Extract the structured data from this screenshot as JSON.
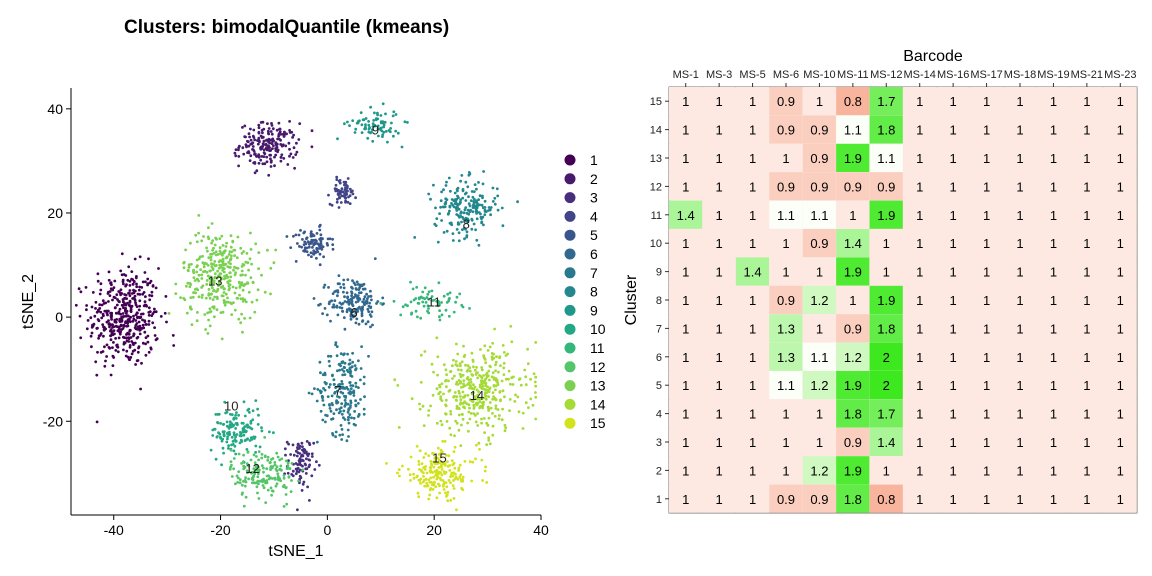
{
  "title": "Clusters: bimodalQuantile (kmeans)",
  "colors": {
    "viridis": [
      "#440154",
      "#481A6C",
      "#472F7D",
      "#414487",
      "#39568C",
      "#31688E",
      "#2A788E",
      "#23888E",
      "#1F988B",
      "#22A884",
      "#35B779",
      "#54C568",
      "#7AD151",
      "#A5DB36",
      "#D2E21B",
      "#FDE725"
    ]
  },
  "chart_data": [
    {
      "type": "scatter",
      "xlabel": "tSNE_1",
      "ylabel": "tSNE_2",
      "xlim": [
        -48,
        40
      ],
      "ylim": [
        -38,
        44
      ],
      "xticks": [
        -40,
        -20,
        0,
        20,
        40
      ],
      "yticks": [
        -20,
        0,
        20,
        40
      ],
      "legend_placement": "right",
      "legend": [
        "1",
        "2",
        "3",
        "4",
        "5",
        "6",
        "7",
        "8",
        "9",
        "10",
        "11",
        "12",
        "13",
        "14",
        "15"
      ],
      "clusters": [
        {
          "name": "1",
          "center": [
            -38,
            0
          ],
          "sd": [
            5.5,
            8
          ],
          "n": 420
        },
        {
          "name": "2",
          "center": [
            -11,
            33
          ],
          "sd": [
            4.5,
            3.5
          ],
          "n": 200
        },
        {
          "name": "3",
          "center": [
            -5,
            -28
          ],
          "sd": [
            2,
            4
          ],
          "n": 90
        },
        {
          "name": "4",
          "center": [
            3,
            24
          ],
          "sd": [
            2,
            2
          ],
          "n": 70
        },
        {
          "name": "5",
          "center": [
            -3,
            14
          ],
          "sd": [
            3,
            2.5
          ],
          "n": 90
        },
        {
          "name": "6",
          "center": [
            5,
            3
          ],
          "sd": [
            4,
            4
          ],
          "n": 170
        },
        {
          "name": "7",
          "center": [
            3,
            -14
          ],
          "sd": [
            4,
            7
          ],
          "n": 200
        },
        {
          "name": "8",
          "center": [
            26,
            21
          ],
          "sd": [
            5,
            4.5
          ],
          "n": 200
        },
        {
          "name": "9",
          "center": [
            9,
            37
          ],
          "sd": [
            4,
            2.5
          ],
          "n": 80
        },
        {
          "name": "10",
          "center": [
            -17,
            -22
          ],
          "sd": [
            4,
            4
          ],
          "n": 140
        },
        {
          "name": "11",
          "center": [
            19,
            3
          ],
          "sd": [
            5,
            2.5
          ],
          "n": 70
        },
        {
          "name": "12",
          "center": [
            -12,
            -30
          ],
          "sd": [
            5,
            4
          ],
          "n": 170
        },
        {
          "name": "13",
          "center": [
            -20,
            8
          ],
          "sd": [
            6,
            7
          ],
          "n": 340
        },
        {
          "name": "14",
          "center": [
            28,
            -14
          ],
          "sd": [
            8,
            7
          ],
          "n": 380
        },
        {
          "name": "15",
          "center": [
            21,
            -30
          ],
          "sd": [
            6,
            4
          ],
          "n": 190
        }
      ],
      "cluster_labels": [
        {
          "text": "9",
          "x": 9,
          "y": 36
        },
        {
          "text": "8",
          "x": 26,
          "y": 18
        },
        {
          "text": "13",
          "x": -21,
          "y": 7
        },
        {
          "text": "6",
          "x": 5,
          "y": 1
        },
        {
          "text": "11",
          "x": 20,
          "y": 3
        },
        {
          "text": "14",
          "x": 28,
          "y": -15
        },
        {
          "text": "7",
          "x": 2,
          "y": -14
        },
        {
          "text": "10",
          "x": -18,
          "y": -17
        },
        {
          "text": "12",
          "x": -14,
          "y": -29
        },
        {
          "text": "15",
          "x": 21,
          "y": -27
        }
      ]
    },
    {
      "type": "heatmap",
      "xlabel": "Barcode",
      "ylabel": "Cluster",
      "x": [
        "MS-1",
        "MS-3",
        "MS-5",
        "MS-6",
        "MS-10",
        "MS-11",
        "MS-12",
        "MS-14",
        "MS-16",
        "MS-17",
        "MS-18",
        "MS-19",
        "MS-21",
        "MS-23"
      ],
      "y": [
        "15",
        "14",
        "13",
        "12",
        "11",
        "10",
        "9",
        "8",
        "7",
        "6",
        "5",
        "4",
        "3",
        "2",
        "1"
      ],
      "values": [
        [
          1,
          1,
          1,
          0.9,
          1,
          0.8,
          1.7,
          1,
          1,
          1,
          1,
          1,
          1,
          1
        ],
        [
          1,
          1,
          1,
          0.9,
          0.9,
          1.1,
          1.8,
          1,
          1,
          1,
          1,
          1,
          1,
          1
        ],
        [
          1,
          1,
          1,
          1,
          0.9,
          1.9,
          1.1,
          1,
          1,
          1,
          1,
          1,
          1,
          1
        ],
        [
          1,
          1,
          1,
          0.9,
          0.9,
          0.9,
          0.9,
          1,
          1,
          1,
          1,
          1,
          1,
          1
        ],
        [
          1.4,
          1,
          1,
          1.1,
          1.1,
          1,
          1.9,
          1,
          1,
          1,
          1,
          1,
          1,
          1
        ],
        [
          1,
          1,
          1,
          1,
          0.9,
          1.4,
          1,
          1,
          1,
          1,
          1,
          1,
          1,
          1
        ],
        [
          1,
          1,
          1.4,
          1,
          1,
          1.9,
          1,
          1,
          1,
          1,
          1,
          1,
          1,
          1
        ],
        [
          1,
          1,
          1,
          0.9,
          1.2,
          1,
          1.9,
          1,
          1,
          1,
          1,
          1,
          1,
          1
        ],
        [
          1,
          1,
          1,
          1.3,
          1,
          0.9,
          1.8,
          1,
          1,
          1,
          1,
          1,
          1,
          1
        ],
        [
          1,
          1,
          1,
          1.3,
          1.1,
          1.2,
          2,
          1,
          1,
          1,
          1,
          1,
          1,
          1
        ],
        [
          1,
          1,
          1,
          1.1,
          1.2,
          1.9,
          2,
          1,
          1,
          1,
          1,
          1,
          1,
          1
        ],
        [
          1,
          1,
          1,
          1,
          1,
          1.8,
          1.7,
          1,
          1,
          1,
          1,
          1,
          1,
          1
        ],
        [
          1,
          1,
          1,
          1,
          1,
          0.9,
          1.4,
          1,
          1,
          1,
          1,
          1,
          1,
          1
        ],
        [
          1,
          1,
          1,
          1,
          1.2,
          1.9,
          1,
          1,
          1,
          1,
          1,
          1,
          1,
          1
        ],
        [
          1,
          1,
          1,
          0.9,
          0.9,
          1.8,
          0.8,
          1,
          1,
          1,
          1,
          1,
          1,
          1
        ]
      ],
      "grid": false
    }
  ]
}
